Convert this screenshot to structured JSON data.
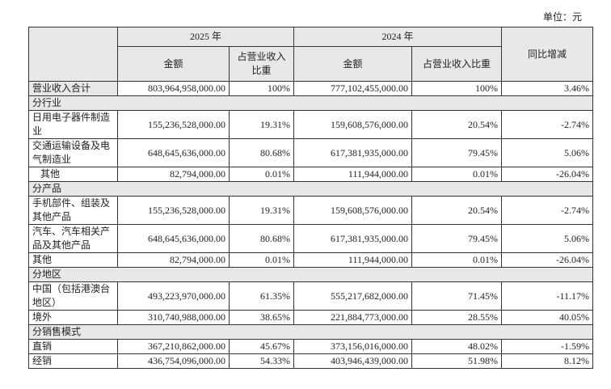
{
  "unit": "单位：元",
  "header": {
    "year_a": "2025 年",
    "year_b": "2024 年",
    "amount_a": "金额",
    "ratio_a": "占营业收入比重",
    "amount_b": "金额",
    "ratio_b": "占营业收入比重",
    "yoy": "同比增减"
  },
  "rows": [
    {
      "label": "营业收入合计",
      "cells": [
        "803,964,958,000.00",
        "100%",
        "777,102,455,000.00",
        "100%",
        "3.46%"
      ]
    },
    {
      "label": "分行业"
    },
    {
      "label": "日用电子器件制造业",
      "cells": [
        "155,236,528,000.00",
        "19.31%",
        "159,608,576,000.00",
        "20.54%",
        "-2.74%"
      ]
    },
    {
      "label": "交通运输设备及电气制造业",
      "cells": [
        "648,645,636,000.00",
        "80.68%",
        "617,381,935,000.00",
        "79.45%",
        "5.06%"
      ]
    },
    {
      "label": "其他",
      "cells": [
        "82,794,000.00",
        "0.01%",
        "111,944,000.00",
        "0.01%",
        "-26.04%"
      ]
    },
    {
      "label": "分产品"
    },
    {
      "label": "手机部件、组装及其他产品",
      "cells": [
        "155,236,528,000.00",
        "19.31%",
        "159,608,576,000.00",
        "20.54%",
        "-2.74%"
      ]
    },
    {
      "label": "汽车、汽车相关产品及其他产品",
      "cells": [
        "648,645,636,000.00",
        "80.68%",
        "617,381,935,000.00",
        "79.45%",
        "5.06%"
      ]
    },
    {
      "label": "其他",
      "cells": [
        "82,794,000.00",
        "0.01%",
        "111,944,000.00",
        "0.01%",
        "-26.04%"
      ]
    },
    {
      "label": "分地区"
    },
    {
      "label": "中国（包括港澳台地区）",
      "cells": [
        "493,223,970,000.00",
        "61.35%",
        "555,217,682,000.00",
        "71.45%",
        "-11.17%"
      ]
    },
    {
      "label": "境外",
      "cells": [
        "310,740,988,000.00",
        "38.65%",
        "221,884,773,000.00",
        "28.55%",
        "40.05%"
      ]
    },
    {
      "label": "分销售模式"
    },
    {
      "label": "直销",
      "cells": [
        "367,210,862,000.00",
        "45.67%",
        "373,156,016,000.00",
        "48.02%",
        "-1.59%"
      ]
    },
    {
      "label": "经销",
      "cells": [
        "436,754,096,000.00",
        "54.33%",
        "403,946,439,000.00",
        "51.98%",
        "8.12%"
      ]
    }
  ]
}
